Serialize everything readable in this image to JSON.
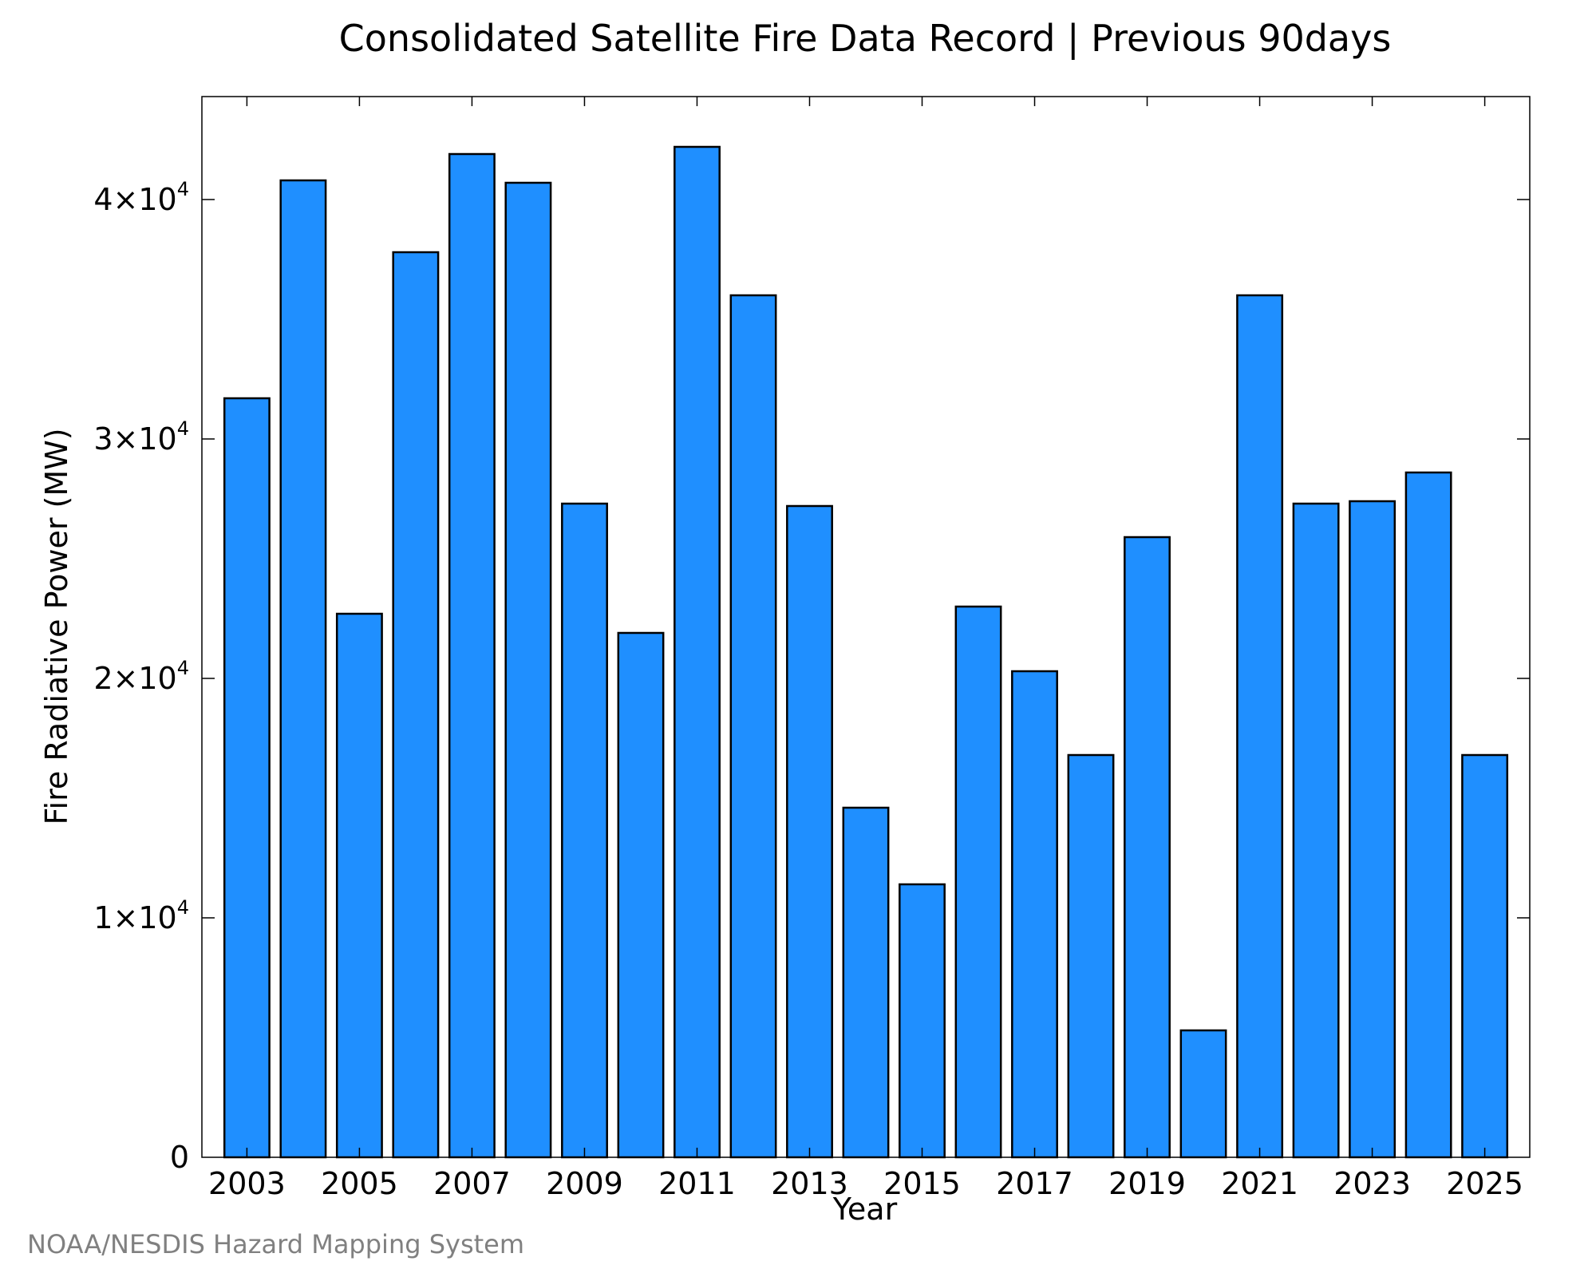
{
  "chart_data": {
    "type": "bar",
    "title": "Consolidated Satellite Fire Data Record | Previous 90days",
    "xlabel": "Year",
    "ylabel": "Fire Radiative Power (MW)",
    "ylim": [
      0,
      44300
    ],
    "xlim": [
      2002.2,
      2025.8
    ],
    "grid": false,
    "bar_color": "#1f8fff",
    "bar_edge_color": "#000000",
    "categories": [
      "2003",
      "2004",
      "2005",
      "2006",
      "2007",
      "2008",
      "2009",
      "2010",
      "2011",
      "2012",
      "2013",
      "2014",
      "2015",
      "2016",
      "2017",
      "2018",
      "2019",
      "2020",
      "2021",
      "2022",
      "2023",
      "2024",
      "2025"
    ],
    "x": [
      2003,
      2004,
      2005,
      2006,
      2007,
      2008,
      2009,
      2010,
      2011,
      2012,
      2013,
      2014,
      2015,
      2016,
      2017,
      2018,
      2019,
      2020,
      2021,
      2022,
      2023,
      2024,
      2025
    ],
    "values": [
      31700,
      40800,
      22700,
      37800,
      41900,
      40700,
      27300,
      21900,
      42200,
      36000,
      27200,
      14600,
      11400,
      23000,
      20300,
      16800,
      25900,
      5300,
      36000,
      27300,
      27400,
      28600,
      16800
    ],
    "x_ticks": [
      {
        "value": 2003,
        "label": "2003"
      },
      {
        "value": 2005,
        "label": "2005"
      },
      {
        "value": 2007,
        "label": "2007"
      },
      {
        "value": 2009,
        "label": "2009"
      },
      {
        "value": 2011,
        "label": "2011"
      },
      {
        "value": 2013,
        "label": "2013"
      },
      {
        "value": 2015,
        "label": "2015"
      },
      {
        "value": 2017,
        "label": "2017"
      },
      {
        "value": 2019,
        "label": "2019"
      },
      {
        "value": 2021,
        "label": "2021"
      },
      {
        "value": 2023,
        "label": "2023"
      },
      {
        "value": 2025,
        "label": "2025"
      }
    ],
    "y_ticks": [
      {
        "value": 0,
        "mantissa": "0",
        "exp": ""
      },
      {
        "value": 10000,
        "mantissa": "1×10",
        "exp": "4"
      },
      {
        "value": 20000,
        "mantissa": "2×10",
        "exp": "4"
      },
      {
        "value": 30000,
        "mantissa": "3×10",
        "exp": "4"
      },
      {
        "value": 40000,
        "mantissa": "4×10",
        "exp": "4"
      }
    ]
  },
  "source_note": "NOAA/NESDIS Hazard Mapping System"
}
